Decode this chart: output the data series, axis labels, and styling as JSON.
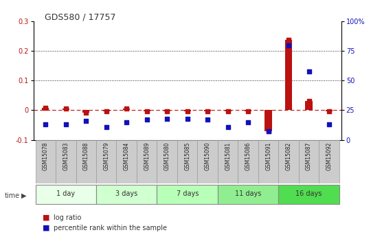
{
  "title": "GDS580 / 17757",
  "samples": [
    "GSM15078",
    "GSM15083",
    "GSM15088",
    "GSM15079",
    "GSM15084",
    "GSM15089",
    "GSM15080",
    "GSM15085",
    "GSM15090",
    "GSM15081",
    "GSM15086",
    "GSM15091",
    "GSM15082",
    "GSM15087",
    "GSM15092"
  ],
  "log_ratio": [
    0.008,
    0.005,
    -0.008,
    -0.003,
    0.005,
    -0.004,
    -0.004,
    -0.004,
    -0.004,
    -0.004,
    -0.004,
    -0.072,
    0.237,
    0.03,
    -0.003
  ],
  "percentile_rank": [
    13,
    13,
    16,
    11,
    15,
    17,
    18,
    18,
    17,
    11,
    15,
    7,
    80,
    58,
    13
  ],
  "groups": [
    {
      "label": "1 day",
      "indices": [
        0,
        1,
        2
      ],
      "color": "#e8ffe8"
    },
    {
      "label": "3 days",
      "indices": [
        3,
        4,
        5
      ],
      "color": "#d0ffd0"
    },
    {
      "label": "7 days",
      "indices": [
        6,
        7,
        8
      ],
      "color": "#b8ffb8"
    },
    {
      "label": "11 days",
      "indices": [
        9,
        10,
        11
      ],
      "color": "#90ee90"
    },
    {
      "label": "16 days",
      "indices": [
        12,
        13,
        14
      ],
      "color": "#50dd50"
    }
  ],
  "ylim_left": [
    -0.1,
    0.3
  ],
  "ylim_right": [
    0,
    100
  ],
  "yticks_left": [
    -0.1,
    0.0,
    0.1,
    0.2,
    0.3
  ],
  "ytick_labels_left": [
    "-0.1",
    "0",
    "0.1",
    "0.2",
    "0.3"
  ],
  "yticks_right": [
    0,
    25,
    50,
    75,
    100
  ],
  "ytick_labels_right": [
    "0",
    "25",
    "50",
    "75",
    "100%"
  ],
  "log_ratio_color": "#bb1111",
  "percentile_color": "#1111bb",
  "dashed_line_color": "#bb1111",
  "grid_color": "#222222",
  "bar_width": 0.35,
  "sample_cell_color": "#cccccc",
  "sample_cell_edge": "#999999"
}
